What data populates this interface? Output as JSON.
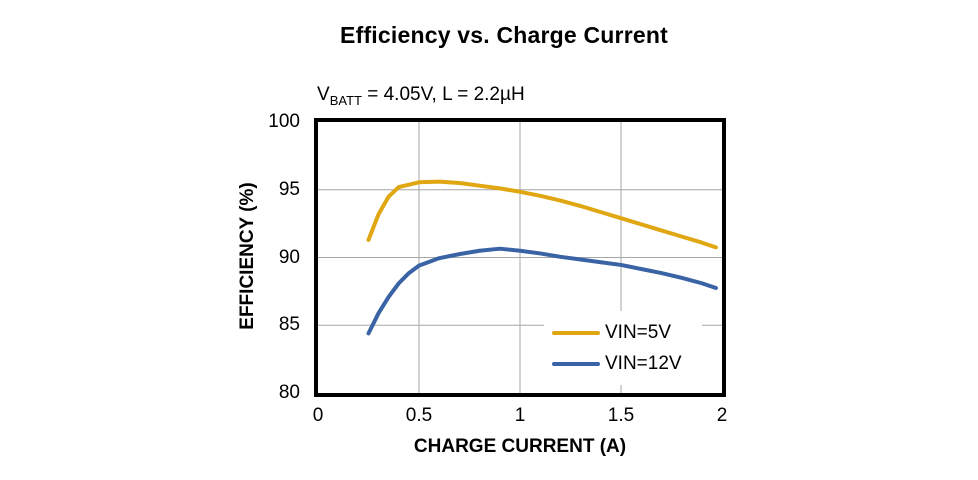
{
  "title": "Efficiency vs. Charge Current",
  "subtitle": {
    "v": "V",
    "sub": "BATT",
    "rest": " = 4.05V, L = 2.2µH"
  },
  "colors": {
    "series_vin5": "#E0A712",
    "series_vin12": "#3A63A5",
    "grid": "#A6A6A6",
    "frame": "#000000",
    "background": "#FFFFFF",
    "text": "#000000"
  },
  "chart_data": {
    "type": "line",
    "title": "Efficiency vs. Charge Current",
    "subtitle": "VBATT = 4.05V, L = 2.2µH",
    "xlabel": "CHARGE CURRENT (A)",
    "ylabel": "EFFICIENCY (%)",
    "xlim": [
      0,
      2
    ],
    "ylim": [
      80,
      100
    ],
    "x_ticks": [
      0,
      0.5,
      1,
      1.5,
      2
    ],
    "x_tick_labels": [
      "0",
      "0.5",
      "1",
      "1.5",
      "2"
    ],
    "y_ticks": [
      80,
      85,
      90,
      95,
      100
    ],
    "y_tick_labels": [
      "80",
      "85",
      "90",
      "95",
      "100"
    ],
    "grid": true,
    "legend_position": "inside-bottom-right",
    "series": [
      {
        "name": "VIN=5V",
        "color": "#E0A712",
        "points": [
          [
            0.25,
            91.3
          ],
          [
            0.3,
            93.2
          ],
          [
            0.35,
            94.5
          ],
          [
            0.4,
            95.2
          ],
          [
            0.5,
            95.55
          ],
          [
            0.6,
            95.6
          ],
          [
            0.7,
            95.5
          ],
          [
            0.8,
            95.3
          ],
          [
            0.9,
            95.1
          ],
          [
            1.0,
            94.85
          ],
          [
            1.1,
            94.55
          ],
          [
            1.2,
            94.2
          ],
          [
            1.3,
            93.8
          ],
          [
            1.4,
            93.35
          ],
          [
            1.5,
            92.9
          ],
          [
            1.6,
            92.45
          ],
          [
            1.7,
            92.0
          ],
          [
            1.8,
            91.55
          ],
          [
            1.9,
            91.1
          ],
          [
            1.97,
            90.75
          ]
        ]
      },
      {
        "name": "VIN=12V",
        "color": "#3A63A5",
        "points": [
          [
            0.25,
            84.4
          ],
          [
            0.3,
            85.9
          ],
          [
            0.35,
            87.1
          ],
          [
            0.4,
            88.1
          ],
          [
            0.45,
            88.85
          ],
          [
            0.5,
            89.4
          ],
          [
            0.6,
            89.95
          ],
          [
            0.7,
            90.25
          ],
          [
            0.8,
            90.5
          ],
          [
            0.9,
            90.65
          ],
          [
            1.0,
            90.5
          ],
          [
            1.1,
            90.3
          ],
          [
            1.2,
            90.05
          ],
          [
            1.3,
            89.85
          ],
          [
            1.4,
            89.65
          ],
          [
            1.5,
            89.45
          ],
          [
            1.6,
            89.15
          ],
          [
            1.7,
            88.85
          ],
          [
            1.8,
            88.5
          ],
          [
            1.9,
            88.1
          ],
          [
            1.97,
            87.75
          ]
        ]
      }
    ]
  }
}
